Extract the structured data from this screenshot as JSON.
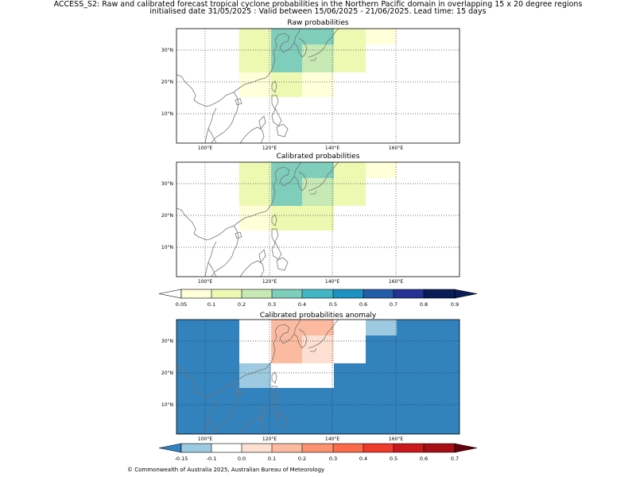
{
  "header": {
    "title_line1": "ACCESS_S2: Raw and calibrated forecast tropical cyclone probabilities in the Northern Pacific domain in overlapping 15 x 20 degree regions",
    "title_line2": "initialised date 31/05/2025 :  Valid between 15/06/2025 - 21/06/2025. Lead time: 15 days"
  },
  "panels": {
    "raw": {
      "title": "Raw probabilities"
    },
    "calibrated": {
      "title": "Calibrated probabilities"
    },
    "anomaly": {
      "title": "Calibrated probabilities anomaly"
    }
  },
  "axes": {
    "lon_labels": [
      "100°E",
      "120°E",
      "140°E",
      "160°E"
    ],
    "lat_labels": [
      "30°N",
      "20°N",
      "10°N"
    ]
  },
  "colorbars": {
    "probability": {
      "labels": [
        "0.05",
        "0.1",
        "0.2",
        "0.3",
        "0.4",
        "0.5",
        "0.6",
        "0.7",
        "0.8",
        "0.9"
      ],
      "colors": [
        "#ffffd9",
        "#edf8b1",
        "#c7e9b4",
        "#7fcdbb",
        "#41b6c4",
        "#1d91c0",
        "#225ea8",
        "#253494",
        "#081d58"
      ]
    },
    "anomaly": {
      "labels": [
        "-0.15",
        "-0.1",
        "0.0",
        "0.1",
        "0.2",
        "0.3",
        "0.4",
        "0.5",
        "0.6",
        "0.7"
      ],
      "colors": [
        "#9ecae1",
        "#ffffff",
        "#fee0d2",
        "#fcbba1",
        "#fc9272",
        "#fb6a4a",
        "#ef3b2c",
        "#cb181d",
        "#a50f15"
      ],
      "under_color": "#3182bd",
      "over_color": "#67000d"
    }
  },
  "footer": "© Commonwealth of Australia 2025, Australian Bureau of Meteorology"
}
